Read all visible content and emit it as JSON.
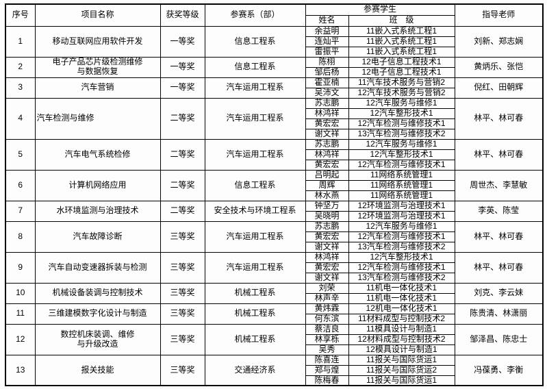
{
  "table": {
    "header": {
      "col_no": "序号",
      "col_project": "项目名称",
      "col_award": "获奖等级",
      "col_dept": "参赛系（部）",
      "col_students": "参赛学生",
      "col_student_name": "姓名",
      "col_student_class": "班　级",
      "col_teachers": "指导老师"
    },
    "rows": [
      {
        "no": "1",
        "project": "移动互联网应用软件开发",
        "award": "一等奖",
        "dept": "信息工程系",
        "students": [
          {
            "name": "余益明",
            "class": "11嵌入式系统工程1"
          },
          {
            "name": "连灿平",
            "class": "11嵌入式系统工程1"
          },
          {
            "name": "雷振平",
            "class": "11嵌入式系统工程1"
          }
        ],
        "teachers": "刘新、郑志娴"
      },
      {
        "no": "2",
        "project": "电子产品芯片级检测维修\n与数据恢复",
        "award": "一等奖",
        "dept": "信息工程系",
        "students": [
          {
            "name": "陈栩",
            "class": "12电子信息工程技术1"
          },
          {
            "name": "邹后杨",
            "class": "12电子信息工程技术1"
          }
        ],
        "teachers": "黄炳乐、张恺"
      },
      {
        "no": "3",
        "project": "汽车营销",
        "award": "一等奖",
        "dept": "汽车运用工程系",
        "students": [
          {
            "name": "霍亚楠",
            "class": "11汽车技术服务与营销2"
          },
          {
            "name": "吴沛文",
            "class": "12汽车技术服务与营销2"
          }
        ],
        "teachers": "倪红、田朝辉"
      },
      {
        "no": "4",
        "project": "汽车检测与维修",
        "project_align": "left",
        "award": "二等奖",
        "dept": "汽车运用工程系",
        "students": [
          {
            "name": "苏志鹏",
            "class": "12汽车服务与维修1"
          },
          {
            "name": "林鸿祥",
            "class": "12汽车整形技术1"
          },
          {
            "name": "黄宏宏",
            "class": "12汽车检测与维修技术1"
          },
          {
            "name": "谢文祥",
            "class": "13汽车检测与维修技术2"
          }
        ],
        "teachers": "林平、林可春"
      },
      {
        "no": "5",
        "project": "汽车电气系统检修",
        "award": "二等奖",
        "dept": "汽车运用工程系",
        "students": [
          {
            "name": "苏志鹏",
            "class": "12汽车服务与维修1"
          },
          {
            "name": "林鸿祥",
            "class": "12汽车整形技术1"
          },
          {
            "name": "黄宏宏",
            "class": "12汽车检测与维修技术1"
          }
        ],
        "teachers": "林平、林可春"
      },
      {
        "no": "6",
        "project": "计算机网络应用",
        "award": "二等奖",
        "dept": "信息工程系",
        "students": [
          {
            "name": "吕明起",
            "class": "11网络系统管理1"
          },
          {
            "name": "周辉",
            "class": "11网络系统管理1"
          },
          {
            "name": "林水燕",
            "class": "11网络系统管理1"
          }
        ],
        "teachers": "周世杰、李慧敏"
      },
      {
        "no": "7",
        "project": "水环境监测与治理技术",
        "award": "二等奖",
        "dept": "安全技术与环境工程系",
        "students": [
          {
            "name": "钟坚万",
            "class": "12环境监测与治理技术1"
          },
          {
            "name": "吴晓明",
            "class": "12环境监测与治理技术1"
          }
        ],
        "teachers": "李英、陈莹"
      },
      {
        "no": "8",
        "project": "汽车故障诊断",
        "award": "三等奖",
        "dept": "汽车运用工程系",
        "students": [
          {
            "name": "苏志鹏",
            "class": "12汽车服务与维修1"
          },
          {
            "name": "黄宏宏",
            "class": "12汽车检测与维修技术1"
          },
          {
            "name": "谢文祥",
            "class": "13汽车检测与维修技术2"
          }
        ],
        "teachers": "林平、林可春"
      },
      {
        "no": "9",
        "project": "汽车自动变速器拆装与检测",
        "award": "三等奖",
        "dept": "汽车运用工程系",
        "students": [
          {
            "name": "林鸿祥",
            "class": "12汽车整形技术1"
          },
          {
            "name": "黄宏宏",
            "class": "12汽车检测与维修技术1"
          },
          {
            "name": "谢文祥",
            "class": "13汽车检测与维修技术2"
          }
        ],
        "teachers": "林平、林可春"
      },
      {
        "no": "10",
        "project": "机械设备装调与控制技术",
        "award": "三等奖",
        "dept": "机械工程系",
        "students": [
          {
            "name": "刘荣",
            "class": "11机电一体化技术1"
          },
          {
            "name": "林声辛",
            "class": "11机电一体化技术1"
          }
        ],
        "teachers": "刘克、李云妹"
      },
      {
        "no": "11",
        "project": "三维建模数字化设计与制造",
        "award": "三等奖",
        "dept": "机械工程系",
        "students": [
          {
            "name": "黄炜霖",
            "class": "12机电一体化技术1"
          },
          {
            "name": "何东滨",
            "class": "11材料成型与控制技术2"
          }
        ],
        "teachers": "陈贵清、林潇丽"
      },
      {
        "no": "12",
        "project": "数控机床装调、维修\n与升级改造",
        "award": "三等奖",
        "dept": "机械工程系",
        "students": [
          {
            "name": "蔡洁良",
            "class": "11模具设计与制造1"
          },
          {
            "name": "林享栎",
            "class": "12材料成型与控制技术2"
          },
          {
            "name": "吴秀",
            "class": "12模具设计与制造1"
          }
        ],
        "teachers": "邹泽昌、陈忠士"
      },
      {
        "no": "13",
        "project": "报关技能",
        "award": "三等奖",
        "dept": "交通经济系",
        "students": [
          {
            "name": "陈喜连",
            "class": "11报关与国际货运1"
          },
          {
            "name": "郑与煌",
            "class": "11报关与国际货运2"
          },
          {
            "name": "陈梅春",
            "class": "11报关与国际货运1"
          }
        ],
        "teachers": "冯葆勇、李衡"
      }
    ]
  },
  "colors": {
    "border": "#000000",
    "text": "#000000",
    "background": "#fefdfd"
  }
}
